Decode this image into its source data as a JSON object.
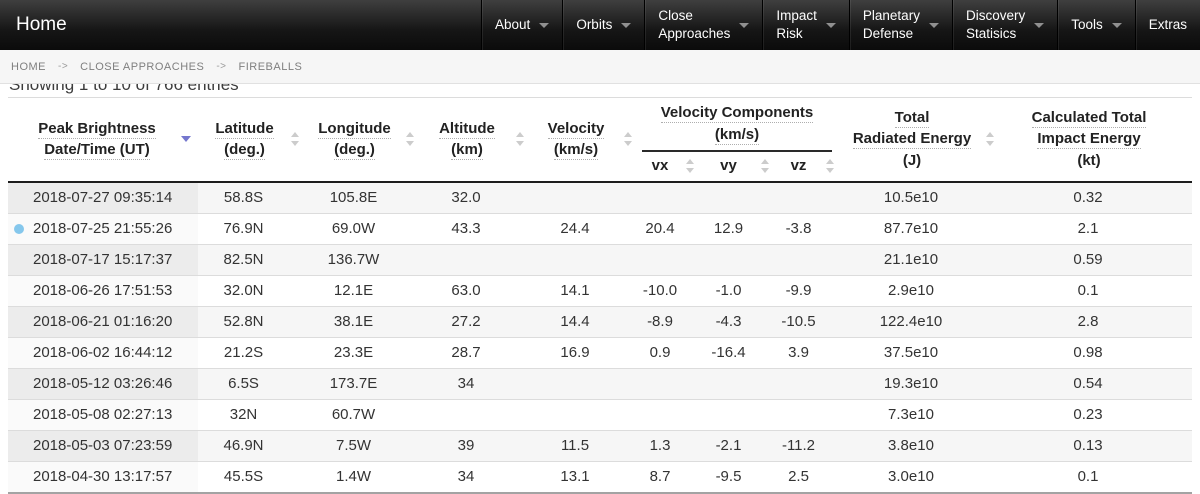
{
  "nav": {
    "brand": "Home",
    "items": [
      {
        "label": "About",
        "dropdown": true
      },
      {
        "label": "Orbits",
        "dropdown": true
      },
      {
        "label": "Close\nApproaches",
        "dropdown": true
      },
      {
        "label": "Impact\nRisk",
        "dropdown": true
      },
      {
        "label": "Planetary\nDefense",
        "dropdown": true
      },
      {
        "label": "Discovery\nStatisics",
        "dropdown": true
      },
      {
        "label": "Tools",
        "dropdown": true
      },
      {
        "label": "Extras",
        "dropdown": false
      }
    ]
  },
  "breadcrumb": {
    "separator": "->",
    "items": [
      "HOME",
      "CLOSE APPROACHES",
      "FIREBALLS"
    ]
  },
  "status_text": "Showing 1 to 10 of 766 entries",
  "table": {
    "columns": [
      {
        "key": "date",
        "lines": [
          {
            "t": "Peak Brightness",
            "u": true
          },
          {
            "t": "Date/Time (UT)",
            "u": true
          }
        ],
        "sort": "active-desc"
      },
      {
        "key": "lat",
        "lines": [
          {
            "t": "Latitude",
            "u": true
          },
          {
            "t": "(deg.)",
            "u": true
          }
        ],
        "sort": "both"
      },
      {
        "key": "lon",
        "lines": [
          {
            "t": "Longitude",
            "u": true
          },
          {
            "t": "(deg.)",
            "u": true
          }
        ],
        "sort": "both"
      },
      {
        "key": "alt",
        "lines": [
          {
            "t": "Altitude",
            "u": true
          },
          {
            "t": "(km)",
            "u": true
          }
        ],
        "sort": "both"
      },
      {
        "key": "vel",
        "lines": [
          {
            "t": "Velocity",
            "u": true
          },
          {
            "t": "(km/s)",
            "u": true
          }
        ],
        "sort": "both"
      },
      {
        "key": "energy",
        "lines": [
          {
            "t": "Total",
            "u": true
          },
          {
            "t": "Radiated Energy",
            "u": true
          },
          {
            "t": "(J)",
            "u": false
          }
        ],
        "sort": "both"
      },
      {
        "key": "impact",
        "lines": [
          {
            "t": "Calculated Total",
            "u": true
          },
          {
            "t": "Impact Energy",
            "u": true
          },
          {
            "t": "(kt)",
            "u": false
          }
        ],
        "sort": "none"
      }
    ],
    "group": {
      "lines": [
        {
          "t": "Velocity Components",
          "u": true
        },
        {
          "t": "(km/s)",
          "u": true
        }
      ],
      "sub": [
        {
          "key": "vx",
          "label": "vx"
        },
        {
          "key": "vy",
          "label": "vy"
        },
        {
          "key": "vz",
          "label": "vz"
        }
      ]
    },
    "rows": [
      {
        "date": "2018-07-27 09:35:14",
        "lat": "58.8S",
        "lon": "105.8E",
        "alt": "32.0",
        "vel": "",
        "vx": "",
        "vy": "",
        "vz": "",
        "energy": "10.5e10",
        "impact": "0.32",
        "marker": false
      },
      {
        "date": "2018-07-25 21:55:26",
        "lat": "76.9N",
        "lon": "69.0W",
        "alt": "43.3",
        "vel": "24.4",
        "vx": "20.4",
        "vy": "12.9",
        "vz": "-3.8",
        "energy": "87.7e10",
        "impact": "2.1",
        "marker": true
      },
      {
        "date": "2018-07-17 15:17:37",
        "lat": "82.5N",
        "lon": "136.7W",
        "alt": "",
        "vel": "",
        "vx": "",
        "vy": "",
        "vz": "",
        "energy": "21.1e10",
        "impact": "0.59",
        "marker": false
      },
      {
        "date": "2018-06-26 17:51:53",
        "lat": "32.0N",
        "lon": "12.1E",
        "alt": "63.0",
        "vel": "14.1",
        "vx": "-10.0",
        "vy": "-1.0",
        "vz": "-9.9",
        "energy": "2.9e10",
        "impact": "0.1",
        "marker": false
      },
      {
        "date": "2018-06-21 01:16:20",
        "lat": "52.8N",
        "lon": "38.1E",
        "alt": "27.2",
        "vel": "14.4",
        "vx": "-8.9",
        "vy": "-4.3",
        "vz": "-10.5",
        "energy": "122.4e10",
        "impact": "2.8",
        "marker": false
      },
      {
        "date": "2018-06-02 16:44:12",
        "lat": "21.2S",
        "lon": "23.3E",
        "alt": "28.7",
        "vel": "16.9",
        "vx": "0.9",
        "vy": "-16.4",
        "vz": "3.9",
        "energy": "37.5e10",
        "impact": "0.98",
        "marker": false
      },
      {
        "date": "2018-05-12 03:26:46",
        "lat": "6.5S",
        "lon": "173.7E",
        "alt": "34",
        "vel": "",
        "vx": "",
        "vy": "",
        "vz": "",
        "energy": "19.3e10",
        "impact": "0.54",
        "marker": false
      },
      {
        "date": "2018-05-08 02:27:13",
        "lat": "32N",
        "lon": "60.7W",
        "alt": "",
        "vel": "",
        "vx": "",
        "vy": "",
        "vz": "",
        "energy": "7.3e10",
        "impact": "0.23",
        "marker": false
      },
      {
        "date": "2018-05-03 07:23:59",
        "lat": "46.9N",
        "lon": "7.5W",
        "alt": "39",
        "vel": "11.5",
        "vx": "1.3",
        "vy": "-2.1",
        "vz": "-11.2",
        "energy": "3.8e10",
        "impact": "0.13",
        "marker": false
      },
      {
        "date": "2018-04-30 13:17:57",
        "lat": "45.5S",
        "lon": "1.4W",
        "alt": "34",
        "vel": "13.1",
        "vx": "8.7",
        "vy": "-9.5",
        "vz": "2.5",
        "energy": "3.0e10",
        "impact": "0.1",
        "marker": false
      }
    ]
  },
  "colors": {
    "sort_active": "#7577ce",
    "marker_dot": "#85c7ec"
  }
}
